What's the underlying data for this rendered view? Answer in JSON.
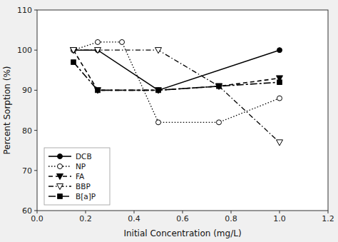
{
  "chart_data": {
    "type": "line",
    "xlabel": "Initial Concentration (mg/L)",
    "ylabel": "Percent Sorption (%)",
    "xlim": [
      0.0,
      1.2
    ],
    "ylim": [
      60,
      110
    ],
    "xticks": [
      {
        "value": 0.0,
        "label": "0.0"
      },
      {
        "value": 0.2,
        "label": "0.2"
      },
      {
        "value": 0.4,
        "label": "0.4"
      },
      {
        "value": 0.6,
        "label": "0.6"
      },
      {
        "value": 0.8,
        "label": "0.8"
      },
      {
        "value": 1.0,
        "label": "1.0"
      },
      {
        "value": 1.2,
        "label": "1.2"
      }
    ],
    "yticks": [
      60,
      70,
      80,
      90,
      100,
      110
    ],
    "grid": false,
    "legend": "lower left",
    "series": [
      {
        "name": "DCB",
        "color": "black",
        "line_style": "solid",
        "marker": "circle",
        "x": [
          0.15,
          0.25,
          0.5,
          1.0
        ],
        "values": [
          100,
          100,
          90,
          100
        ]
      },
      {
        "name": "NP",
        "color": "black",
        "line_style": "dotted",
        "marker": "open-circle",
        "x": [
          0.15,
          0.25,
          0.35,
          0.5,
          0.75,
          1.0
        ],
        "values": [
          100,
          102,
          102,
          82,
          82,
          88
        ]
      },
      {
        "name": "FA",
        "color": "black",
        "line_style": "dashed",
        "marker": "triangle-down",
        "x": [
          0.15,
          0.25,
          0.5,
          0.75,
          1.0
        ],
        "values": [
          100,
          90,
          90,
          91,
          93
        ]
      },
      {
        "name": "BBP",
        "color": "black",
        "line_style": "dashdot",
        "marker": "open-triangle-down",
        "x": [
          0.15,
          0.25,
          0.5,
          0.75,
          1.0
        ],
        "values": [
          100,
          100,
          100,
          91,
          77
        ]
      },
      {
        "name": "B[a]P",
        "color": "black",
        "line_style": "long-dash-dot",
        "marker": "square",
        "x": [
          0.15,
          0.25,
          0.5,
          0.75,
          1.0
        ],
        "values": [
          97,
          90,
          90,
          91,
          92
        ]
      }
    ]
  }
}
